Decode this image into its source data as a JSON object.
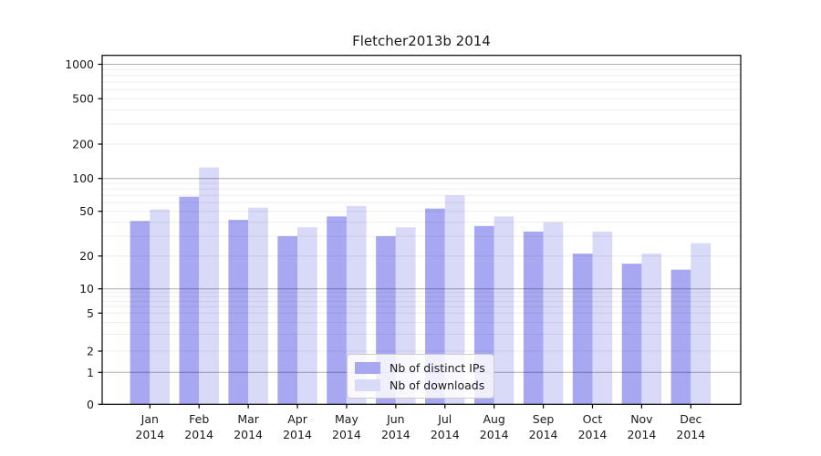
{
  "title": "Fletcher2013b 2014",
  "colors": {
    "series_distinct_ips": "#a8a8f2",
    "series_downloads": "#d9d9f8",
    "grid_major": "rgba(0,0,0,0.32)",
    "grid_minor": "rgba(0,0,0,0.07)",
    "axis_frame": "#000000",
    "text": "#1a1a1a",
    "legend_border": "#cccccc"
  },
  "chart_data": {
    "type": "bar",
    "title": "Fletcher2013b 2014",
    "categories": [
      "Jan",
      "Feb",
      "Mar",
      "Apr",
      "May",
      "Jun",
      "Jul",
      "Aug",
      "Sep",
      "Oct",
      "Nov",
      "Dec"
    ],
    "x_year": "2014",
    "series": [
      {
        "name": "Nb of distinct IPs",
        "color": "#a8a8f2",
        "values": [
          41,
          68,
          42,
          30,
          45,
          30,
          53,
          37,
          33,
          21,
          17,
          15
        ]
      },
      {
        "name": "Nb of downloads",
        "color": "#d9d9f8",
        "values": [
          52,
          125,
          54,
          36,
          56,
          36,
          70,
          45,
          40,
          33,
          21,
          26
        ]
      }
    ],
    "xlabel": "",
    "ylabel": "",
    "y_scale": "symlog",
    "y_ticks": [
      0,
      1,
      2,
      5,
      10,
      20,
      50,
      100,
      200,
      500,
      1000
    ],
    "y_minor_gridlines": [
      2,
      3,
      4,
      5,
      6,
      7,
      8,
      9,
      20,
      30,
      40,
      50,
      60,
      70,
      80,
      90,
      200,
      300,
      400,
      500,
      600,
      700,
      800,
      900
    ],
    "y_major_gridlines": [
      1,
      10,
      100,
      1000
    ],
    "ylim": [
      0,
      1400
    ],
    "grid": "both",
    "legend_position": "lower-center",
    "legend_entries": [
      "Nb of distinct IPs",
      "Nb of downloads"
    ]
  }
}
